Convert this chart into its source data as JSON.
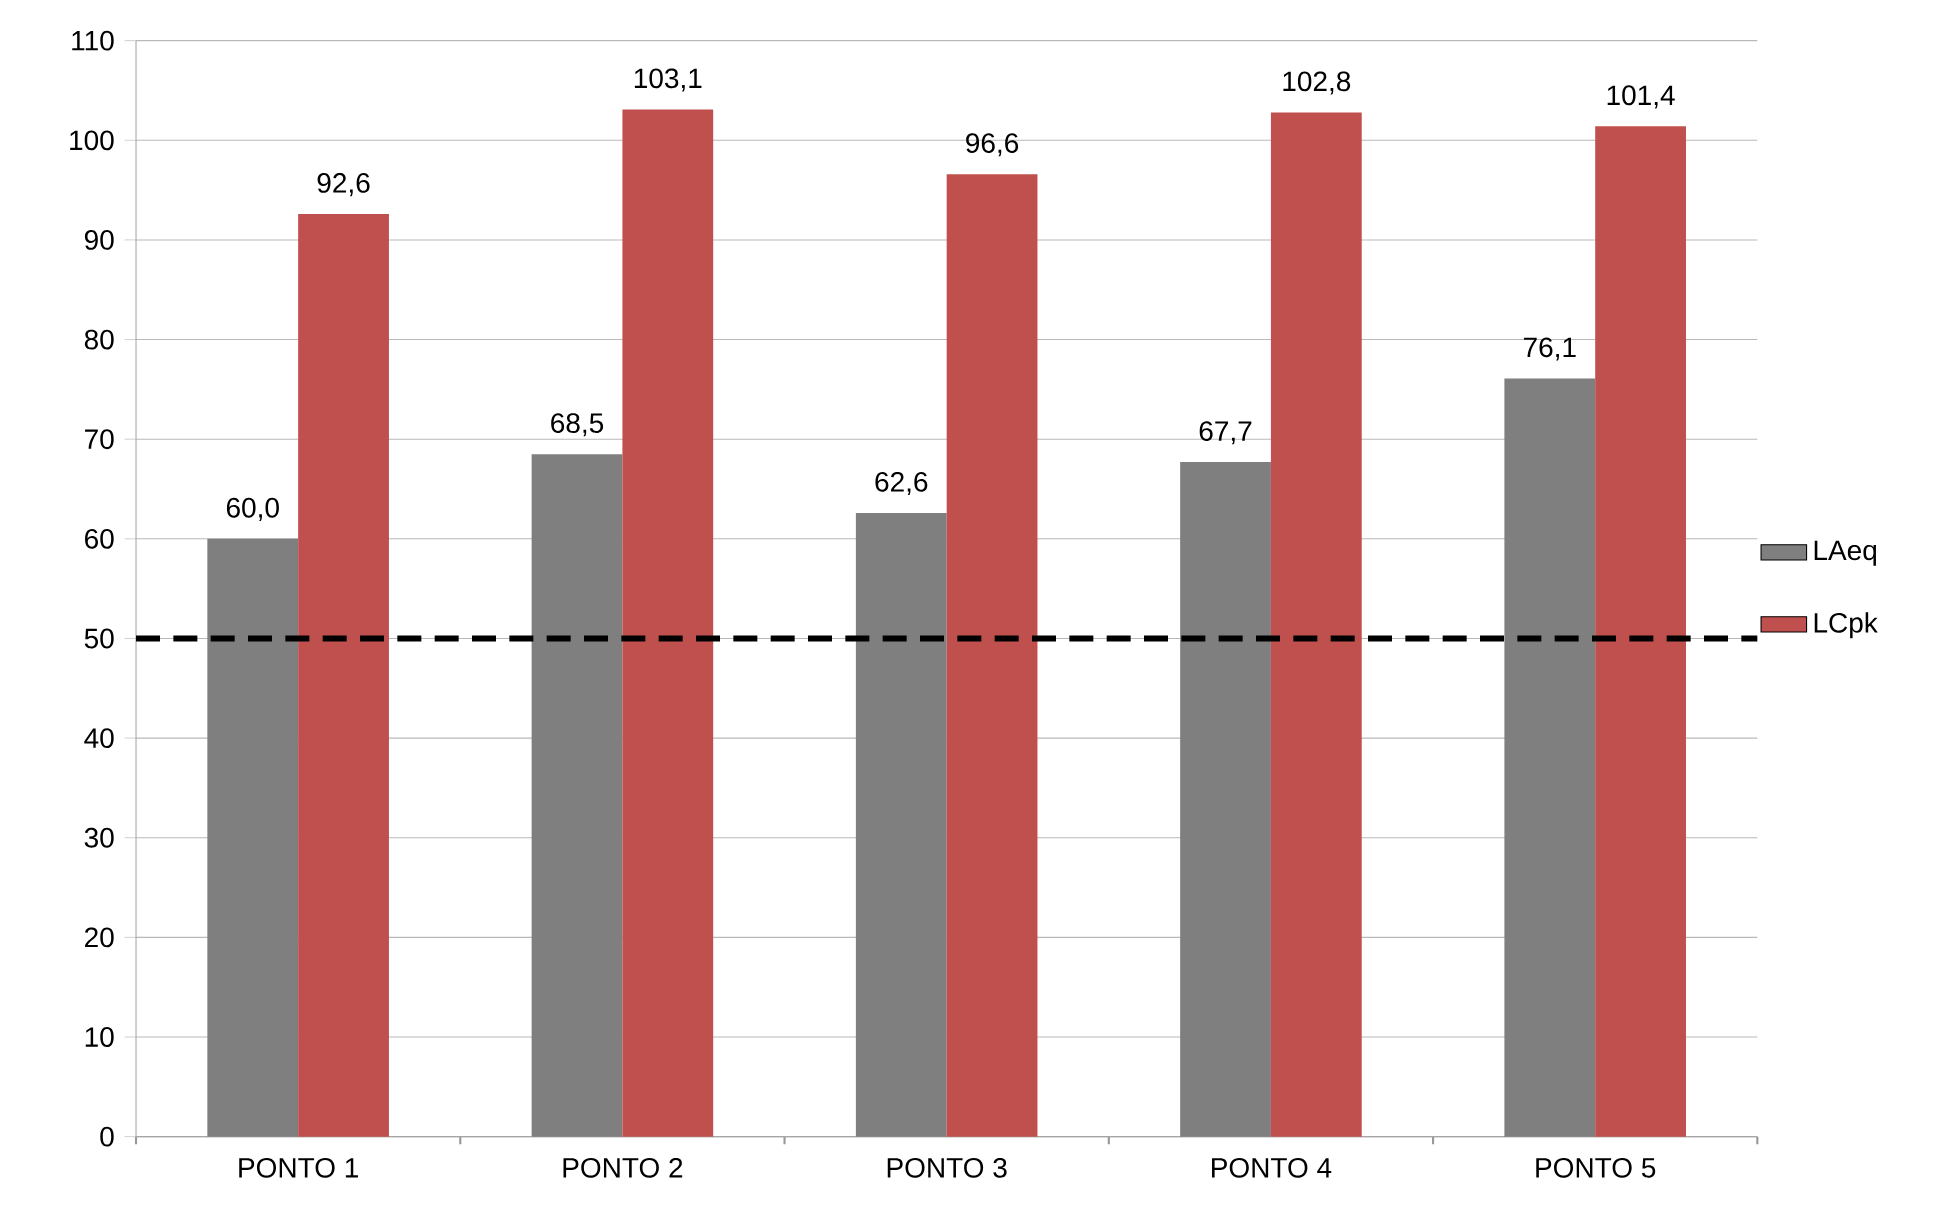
{
  "chart_data": {
    "type": "bar",
    "categories": [
      "PONTO 1",
      "PONTO 2",
      "PONTO 3",
      "PONTO 4",
      "PONTO 5"
    ],
    "series": [
      {
        "name": "LAeq",
        "color": "#7f7f7f",
        "values": [
          60.0,
          68.5,
          62.6,
          67.7,
          76.1
        ],
        "value_labels": [
          "60,0",
          "68,5",
          "62,6",
          "67,7",
          "76,1"
        ]
      },
      {
        "name": "LCpk",
        "color": "#c0504d",
        "values": [
          92.6,
          103.1,
          96.6,
          102.8,
          101.4
        ],
        "value_labels": [
          "92,6",
          "103,1",
          "96,6",
          "102,8",
          "101,4"
        ]
      }
    ],
    "ylim": [
      0,
      110
    ],
    "yticks": [
      0,
      10,
      20,
      30,
      40,
      50,
      60,
      70,
      80,
      90,
      100,
      110
    ],
    "grid": "y",
    "legend": "right",
    "ref_lines": [
      {
        "axis": "y",
        "value": 50,
        "color": "#000000",
        "line_style": "dashed"
      }
    ]
  }
}
